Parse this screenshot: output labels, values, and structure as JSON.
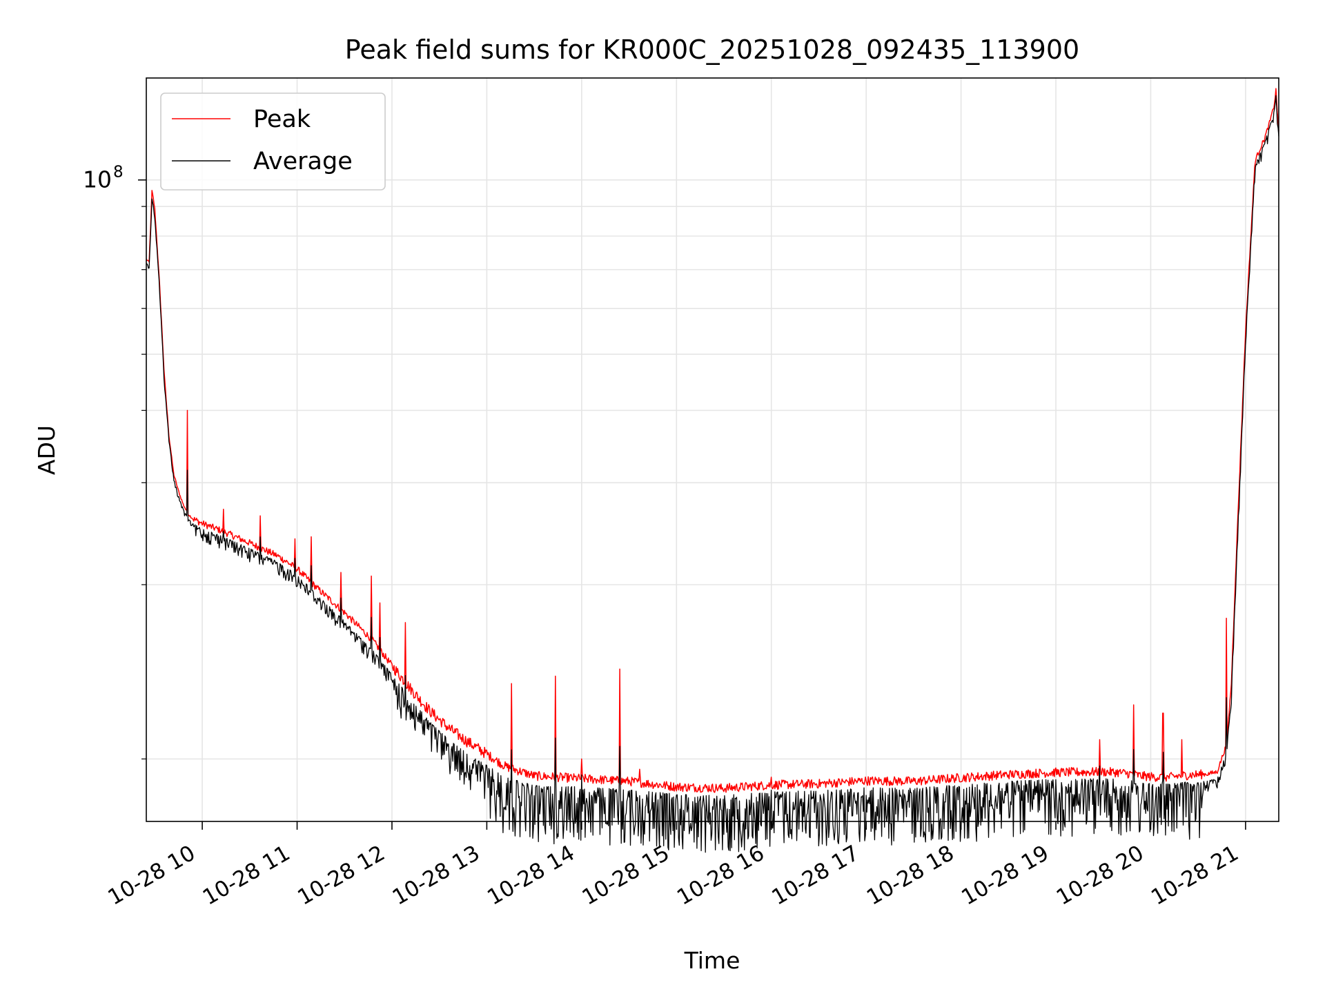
{
  "chart_data": {
    "type": "line",
    "title": "Peak field sums for KR000C_20251028_092435_113900",
    "xlabel": "Time",
    "ylabel": "ADU",
    "yscale": "log",
    "xlim": [
      9.41,
      21.35
    ],
    "ylim": [
      7800000,
      150000000
    ],
    "major_y_ticks": [
      {
        "value": 100000000,
        "label": "10",
        "exp": "8"
      }
    ],
    "minor_y_ticks": [
      10000000,
      20000000,
      30000000,
      40000000,
      50000000,
      60000000,
      70000000,
      80000000,
      90000000
    ],
    "x_ticks": [
      {
        "value": 10,
        "label": "10-28 10"
      },
      {
        "value": 11,
        "label": "10-28 11"
      },
      {
        "value": 12,
        "label": "10-28 12"
      },
      {
        "value": 13,
        "label": "10-28 13"
      },
      {
        "value": 14,
        "label": "10-28 14"
      },
      {
        "value": 15,
        "label": "10-28 15"
      },
      {
        "value": 16,
        "label": "10-28 16"
      },
      {
        "value": 17,
        "label": "10-28 17"
      },
      {
        "value": 18,
        "label": "10-28 18"
      },
      {
        "value": 19,
        "label": "10-28 19"
      },
      {
        "value": 20,
        "label": "10-28 20"
      },
      {
        "value": 21,
        "label": "10-28 21"
      }
    ],
    "grid": true,
    "legend_position": "top-left",
    "series": [
      {
        "name": "Peak",
        "color": "#ff0000",
        "x": [
          9.41,
          9.44,
          9.47,
          9.5,
          9.55,
          9.6,
          9.65,
          9.7,
          9.75,
          9.8,
          9.85,
          9.9,
          10.0,
          10.2,
          10.5,
          10.8,
          11.0,
          11.2,
          11.5,
          11.8,
          12.0,
          12.2,
          12.4,
          12.6,
          12.8,
          13.0,
          13.2,
          13.5,
          14.0,
          14.5,
          15.0,
          15.5,
          16.0,
          16.5,
          17.0,
          17.5,
          18.0,
          18.5,
          19.0,
          19.5,
          19.65,
          19.8,
          19.9,
          20.0,
          20.1,
          20.2,
          20.3,
          20.4,
          20.5,
          20.6,
          20.7,
          20.8,
          20.85,
          20.9,
          21.0,
          21.1,
          21.2,
          21.25,
          21.3,
          21.32,
          21.35
        ],
        "y": [
          73000000,
          72000000,
          96000000,
          89000000,
          66000000,
          46000000,
          36000000,
          31000000,
          29000000,
          27500000,
          26500000,
          26000000,
          25500000,
          24800000,
          23600000,
          22400000,
          21300000,
          19800000,
          17900000,
          16000000,
          14500000,
          13200000,
          12100000,
          11300000,
          10700000,
          10200000,
          9700000,
          9350000,
          9250000,
          9150000,
          8950000,
          8900000,
          9020000,
          9060000,
          9170000,
          9150000,
          9280000,
          9400000,
          9480000,
          9500000,
          9480000,
          9420000,
          9350000,
          9320000,
          9300000,
          9300000,
          9350000,
          9380000,
          9400000,
          9420000,
          9500000,
          10600000,
          13500000,
          22000000,
          55000000,
          108000000,
          118000000,
          125000000,
          134000000,
          143000000,
          121000000
        ]
      },
      {
        "name": "Average",
        "color": "#000000",
        "x": [
          9.41,
          9.44,
          9.47,
          9.5,
          9.55,
          9.6,
          9.65,
          9.7,
          9.75,
          9.8,
          9.85,
          9.9,
          10.0,
          10.2,
          10.5,
          10.8,
          11.0,
          11.2,
          11.5,
          11.8,
          12.0,
          12.2,
          12.4,
          12.6,
          12.8,
          13.0,
          13.2,
          13.5,
          14.0,
          14.5,
          15.0,
          15.5,
          16.0,
          16.5,
          17.0,
          17.5,
          18.0,
          18.5,
          19.0,
          19.5,
          19.65,
          19.8,
          19.9,
          20.0,
          20.1,
          20.2,
          20.3,
          20.4,
          20.5,
          20.6,
          20.7,
          20.8,
          20.85,
          20.9,
          21.0,
          21.1,
          21.2,
          21.25,
          21.3,
          21.32,
          21.35
        ],
        "y": [
          72000000,
          71000000,
          93000000,
          87000000,
          65000000,
          45000000,
          35500000,
          30500000,
          28500000,
          27000000,
          26000000,
          25500000,
          25000000,
          24300000,
          23100000,
          21900000,
          20800000,
          19300000,
          17300000,
          15400000,
          14000000,
          12700000,
          11600000,
          10800000,
          10200000,
          9750000,
          9300000,
          9000000,
          8950000,
          8850000,
          8700000,
          8650000,
          8780000,
          8820000,
          8920000,
          8900000,
          9030000,
          9150000,
          9230000,
          9250000,
          9230000,
          9170000,
          9100000,
          9070000,
          9050000,
          9050000,
          9100000,
          9130000,
          9150000,
          9170000,
          9250000,
          10300000,
          13000000,
          21000000,
          53000000,
          106000000,
          116000000,
          123000000,
          132000000,
          140000000,
          119000000
        ]
      }
    ],
    "spikes": [
      {
        "x": 9.84,
        "y": 40000000
      },
      {
        "x": 10.22,
        "y": 27000000
      },
      {
        "x": 10.61,
        "y": 26300000
      },
      {
        "x": 10.98,
        "y": 24000000
      },
      {
        "x": 11.15,
        "y": 24200000
      },
      {
        "x": 11.46,
        "y": 21000000
      },
      {
        "x": 11.78,
        "y": 20700000
      },
      {
        "x": 11.87,
        "y": 18600000
      },
      {
        "x": 12.14,
        "y": 17200000
      },
      {
        "x": 13.26,
        "y": 13500000
      },
      {
        "x": 13.72,
        "y": 13900000
      },
      {
        "x": 14.0,
        "y": 10000000
      },
      {
        "x": 14.4,
        "y": 14300000
      },
      {
        "x": 14.61,
        "y": 9600000
      },
      {
        "x": 16.0,
        "y": 9300000
      },
      {
        "x": 19.46,
        "y": 10800000
      },
      {
        "x": 19.82,
        "y": 12400000
      },
      {
        "x": 20.13,
        "y": 12000000
      },
      {
        "x": 20.33,
        "y": 10800000
      },
      {
        "x": 20.8,
        "y": 17500000
      }
    ]
  }
}
